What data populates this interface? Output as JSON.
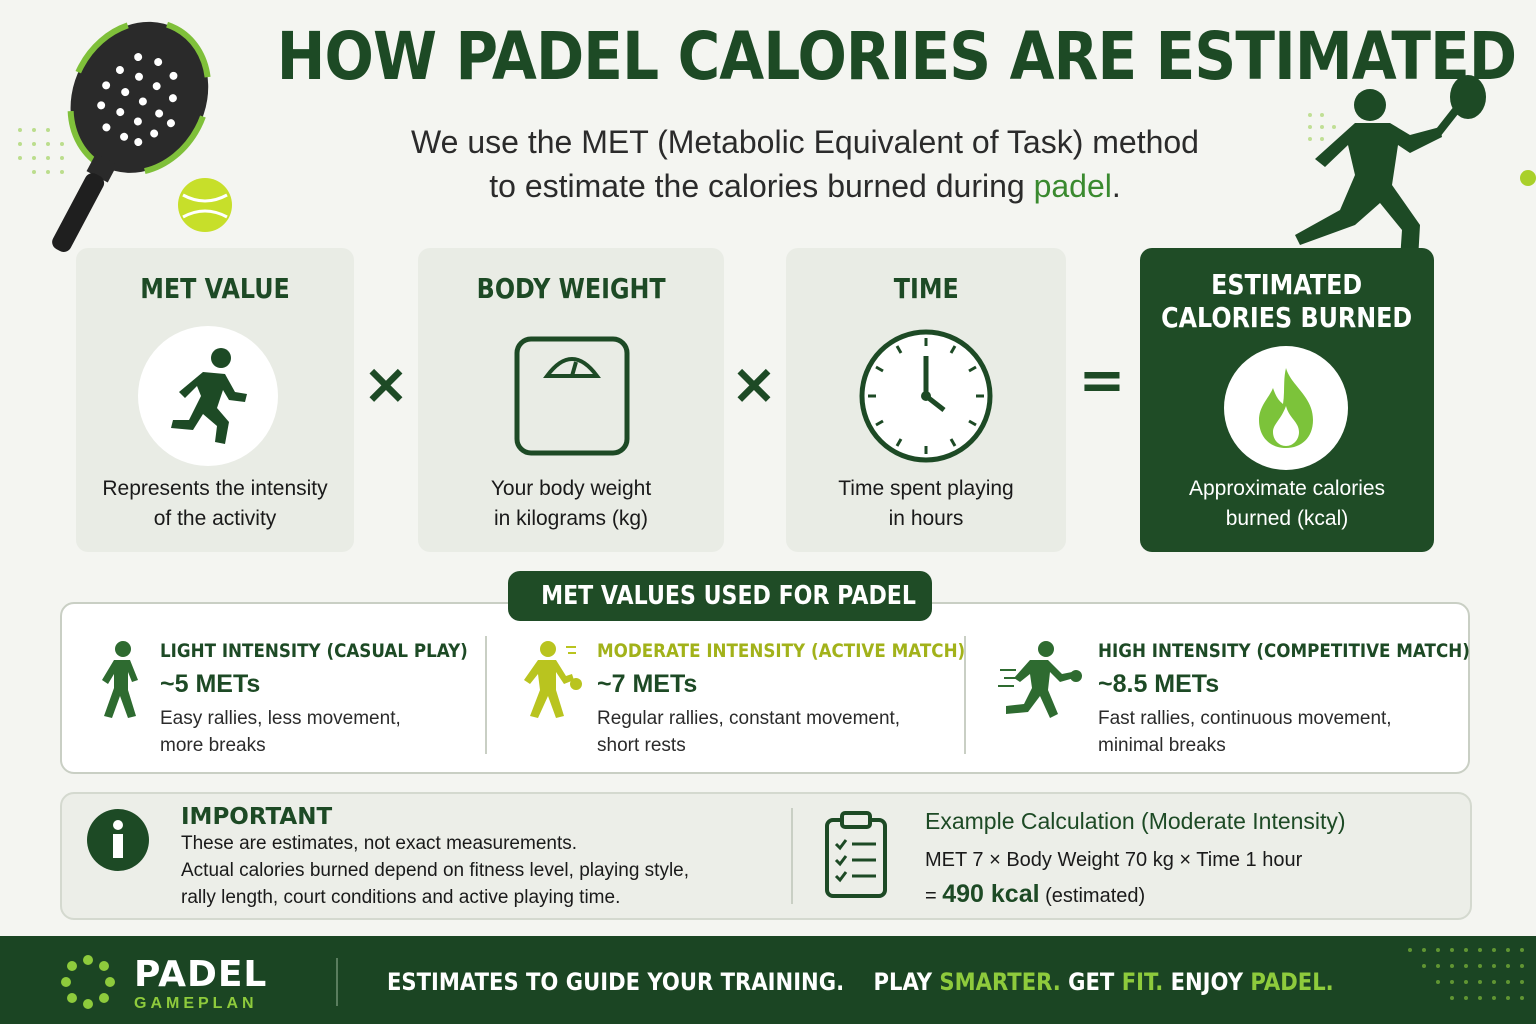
{
  "header": {
    "title": "HOW PADEL CALORIES ARE ESTIMATED",
    "subtitle_line1": "We use the MET (Metabolic Equivalent of Task) method",
    "subtitle_line2_prefix": "to estimate the calories burned during ",
    "subtitle_line2_accent": "padel",
    "subtitle_line2_suffix": "."
  },
  "formula": {
    "cards": [
      {
        "title": "MET VALUE",
        "desc1": "Represents the intensity",
        "desc2": "of the activity",
        "icon": "running-person-icon"
      },
      {
        "title": "BODY WEIGHT",
        "desc1": "Your body weight",
        "desc2": "in kilograms (kg)",
        "icon": "scale-icon"
      },
      {
        "title": "TIME",
        "desc1": "Time spent playing",
        "desc2": "in hours",
        "icon": "clock-icon"
      },
      {
        "title1": "ESTIMATED",
        "title2": "CALORIES BURNED",
        "desc1": "Approximate calories",
        "desc2": "burned (kcal)",
        "icon": "flame-icon"
      }
    ],
    "op_multiply": "×",
    "op_equals": "="
  },
  "met_section": {
    "tag": "MET VALUES USED FOR PADEL",
    "levels": [
      {
        "title": "LIGHT INTENSITY (CASUAL PLAY)",
        "value": "~5 METs",
        "desc1": "Easy rallies, less movement,",
        "desc2": "more breaks",
        "icon": "walking-person-icon"
      },
      {
        "title": "MODERATE INTENSITY (ACTIVE MATCH)",
        "value": "~7 METs",
        "desc1": "Regular rallies, constant movement,",
        "desc2": "short rests",
        "icon": "padel-player-icon"
      },
      {
        "title": "HIGH INTENSITY (COMPETITIVE MATCH)",
        "value": "~8.5 METs",
        "desc1": "Fast rallies, continuous movement,",
        "desc2": "minimal breaks",
        "icon": "sprinting-player-icon"
      }
    ]
  },
  "important": {
    "title": "IMPORTANT",
    "line1": "These are estimates, not exact measurements.",
    "line2": "Actual calories burned depend on fitness level, playing style,",
    "line3": "rally length, court conditions and active playing time."
  },
  "example": {
    "title": "Example Calculation (Moderate Intensity)",
    "line": "MET 7 × Body Weight 70 kg × Time 1 hour",
    "result_prefix": "= ",
    "result_value": "490 kcal",
    "result_suffix": " (estimated)"
  },
  "footer": {
    "brand": "PADEL",
    "brand_sub": "GAMEPLAN",
    "tag_part1": "ESTIMATES TO GUIDE YOUR TRAINING.",
    "tag_part2": "PLAY ",
    "tag_smarter": "SMARTER.",
    "tag_part3": " GET ",
    "tag_fit": "FIT.",
    "tag_part4": " ENJOY ",
    "tag_padel": "PADEL."
  },
  "colors": {
    "dark_green": "#1f4c26",
    "lime": "#8ecb3c",
    "moderate_yellow": "#a2b21a"
  }
}
